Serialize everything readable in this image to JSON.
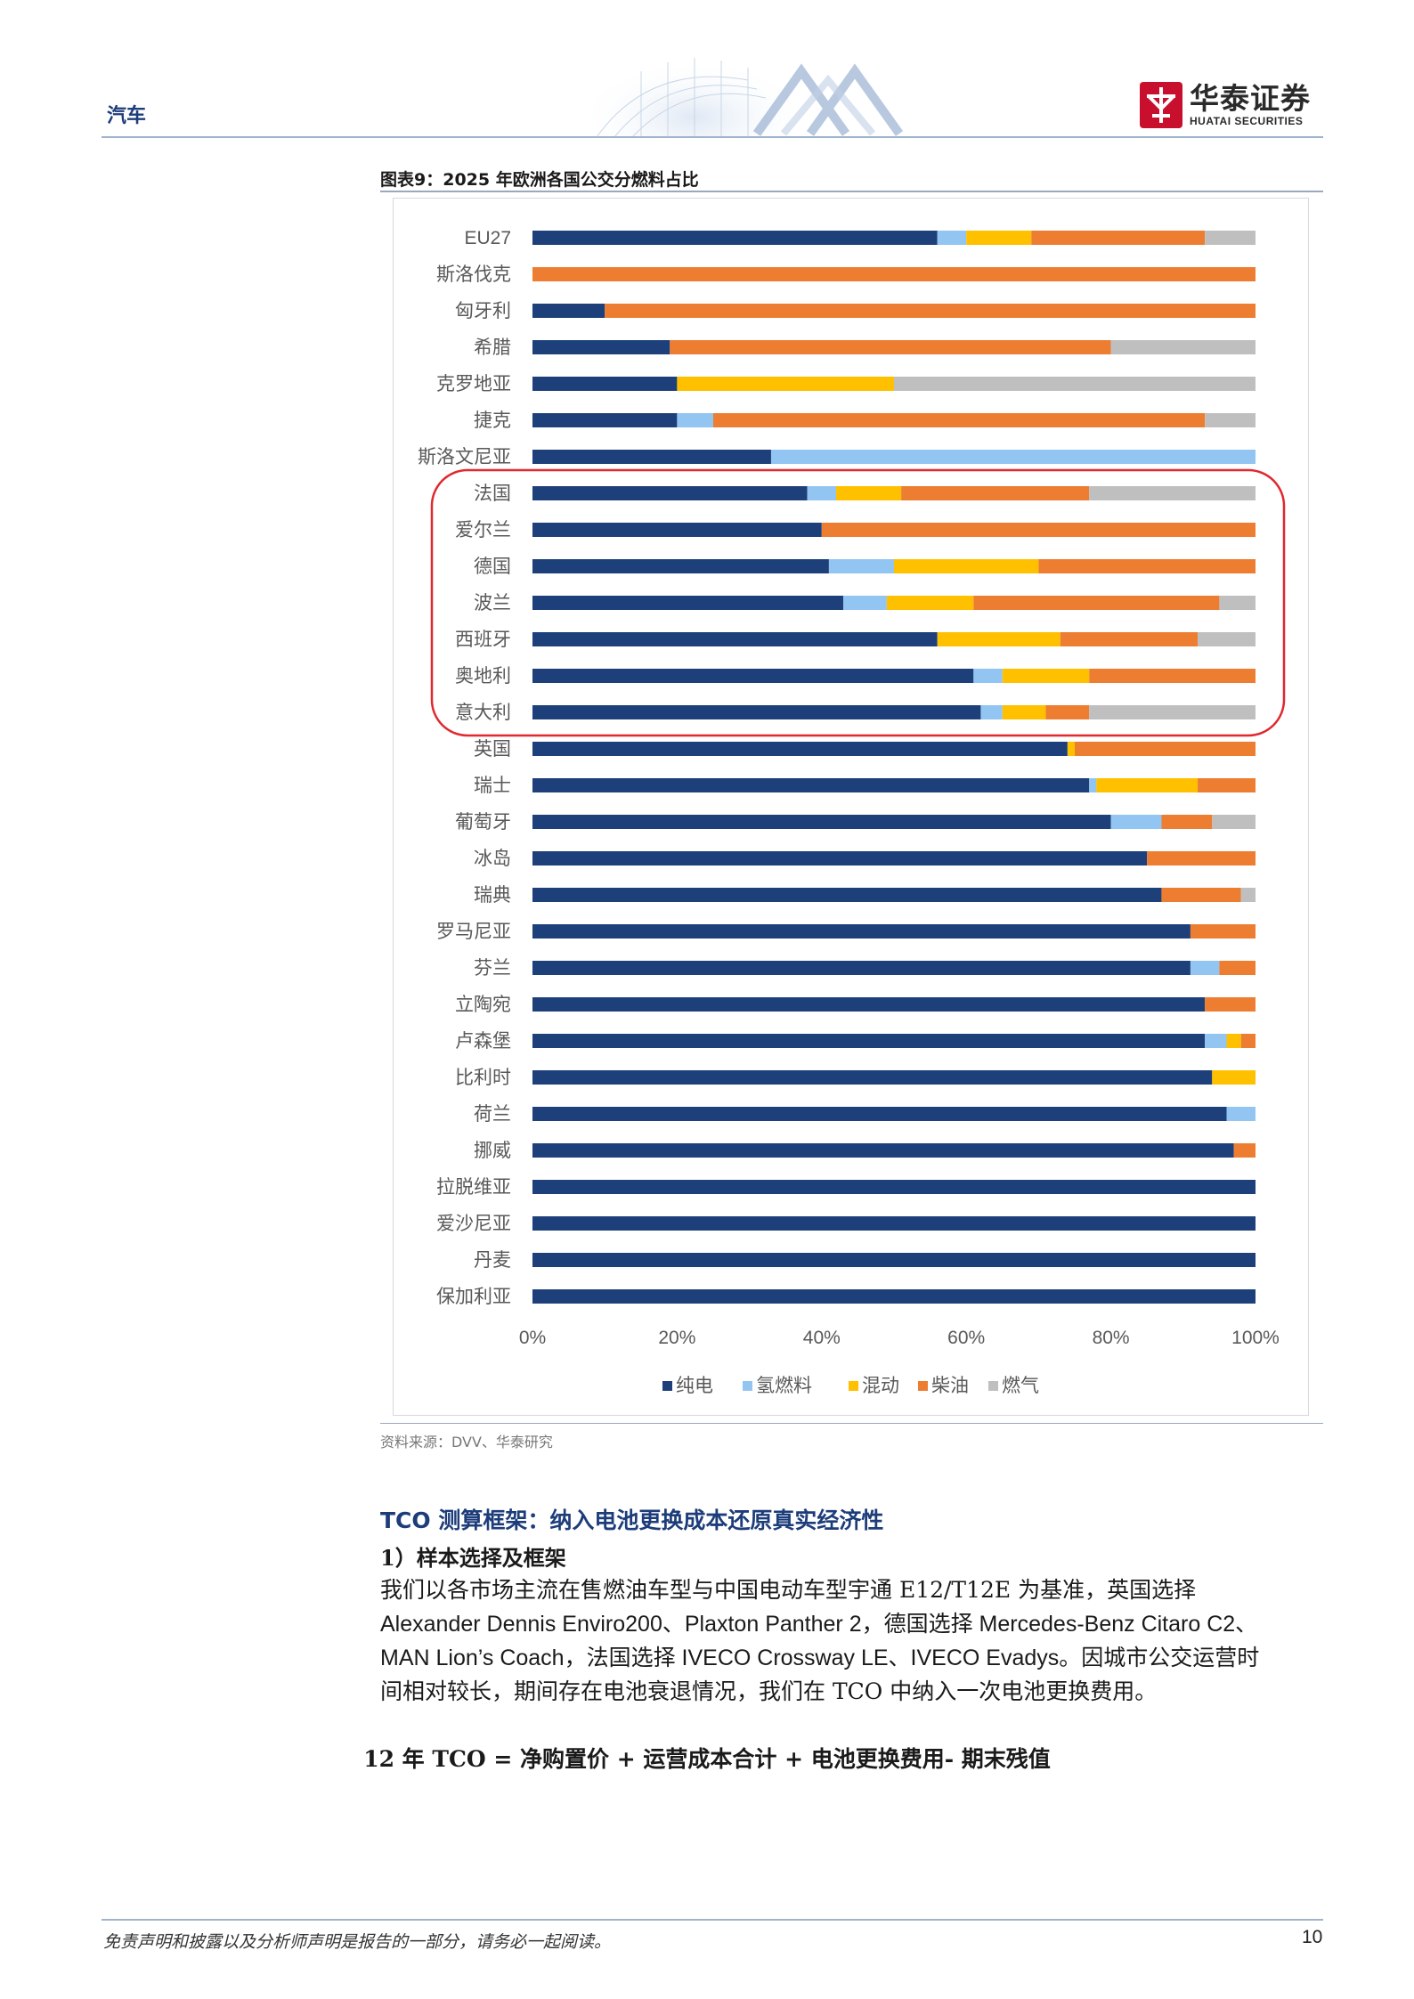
{
  "header": {
    "section": "汽车",
    "logo_cn": "华泰证券",
    "logo_en": "HUATAI SECURITIES",
    "brand_color": "#c8102e"
  },
  "figure": {
    "title": "图表9：2025 年欧洲各国公交分燃料占比",
    "source": "资料来源：DVV、华泰研究"
  },
  "chart_data": {
    "type": "bar",
    "orientation": "horizontal",
    "stacked": true,
    "categories": [
      "EU27",
      "斯洛伐克",
      "匈牙利",
      "希腊",
      "克罗地亚",
      "捷克",
      "斯洛文尼亚",
      "法国",
      "爱尔兰",
      "德国",
      "波兰",
      "西班牙",
      "奥地利",
      "意大利",
      "英国",
      "瑞士",
      "葡萄牙",
      "冰岛",
      "瑞典",
      "罗马尼亚",
      "芬兰",
      "立陶宛",
      "卢森堡",
      "比利时",
      "荷兰",
      "挪威",
      "拉脱维亚",
      "爱沙尼亚",
      "丹麦",
      "保加利亚"
    ],
    "series": [
      {
        "name": "纯电",
        "color": "#1d3f7a",
        "values": [
          56,
          0,
          10,
          19,
          20,
          20,
          33,
          38,
          40,
          41,
          43,
          56,
          61,
          62,
          74,
          77,
          80,
          85,
          87,
          91,
          91,
          93,
          93,
          94,
          96,
          97,
          100,
          100,
          100,
          100
        ]
      },
      {
        "name": "氢燃料",
        "color": "#92c5f2",
        "values": [
          4,
          0,
          0,
          0,
          0,
          5,
          67,
          4,
          0,
          9,
          6,
          0,
          4,
          3,
          0,
          1,
          7,
          0,
          0,
          0,
          4,
          0,
          3,
          0,
          4,
          0,
          0,
          0,
          0,
          0
        ]
      },
      {
        "name": "混动",
        "color": "#ffc000",
        "values": [
          9,
          0,
          0,
          0,
          30,
          0,
          0,
          9,
          0,
          20,
          12,
          17,
          12,
          6,
          1,
          14,
          0,
          0,
          0,
          0,
          0,
          0,
          2,
          6,
          0,
          0,
          0,
          0,
          0,
          0
        ]
      },
      {
        "name": "柴油",
        "color": "#ed7d31",
        "values": [
          24,
          100,
          90,
          61,
          0,
          68,
          0,
          26,
          60,
          30,
          34,
          19,
          23,
          6,
          25,
          8,
          7,
          15,
          11,
          9,
          5,
          7,
          2,
          0,
          0,
          3,
          0,
          0,
          0,
          0
        ]
      },
      {
        "name": "燃气",
        "color": "#bfbfbf",
        "values": [
          7,
          0,
          0,
          20,
          50,
          7,
          0,
          23,
          0,
          0,
          5,
          8,
          0,
          23,
          0,
          0,
          6,
          0,
          2,
          0,
          0,
          0,
          0,
          0,
          0,
          0,
          0,
          0,
          0,
          0
        ]
      }
    ],
    "x_ticks": [
      "0%",
      "20%",
      "40%",
      "60%",
      "80%",
      "100%"
    ],
    "xlim": [
      0,
      100
    ],
    "legend_position": "bottom",
    "grid": false,
    "highlight": {
      "from": "法国",
      "to": "意大利",
      "color": "#e0282e"
    }
  },
  "section": {
    "heading": "TCO 测算框架：纳入电池更换成本还原真实经济性",
    "subheading": "1）样本选择及框架",
    "paragraph_lines": [
      "我们以各市场主流在售燃油车型与中国电动车型宇通 E12/T12E 为基准，英国选择",
      "Alexander Dennis Enviro200、Plaxton Panther 2，德国选择 Mercedes-Benz Citaro C2、",
      "MAN Lion’s Coach，法国选择 IVECO Crossway LE、IVECO Evadys。因城市公交运营时",
      "间相对较长，期间存在电池衰退情况，我们在 TCO 中纳入一次电池更换费用。"
    ],
    "formula": "12 年 TCO = 净购置价 + 运营成本合计 + 电池更换费用- 期末残值"
  },
  "footer": {
    "disclaimer": "免责声明和披露以及分析师声明是报告的一部分，请务必一起阅读。",
    "page": "10"
  }
}
